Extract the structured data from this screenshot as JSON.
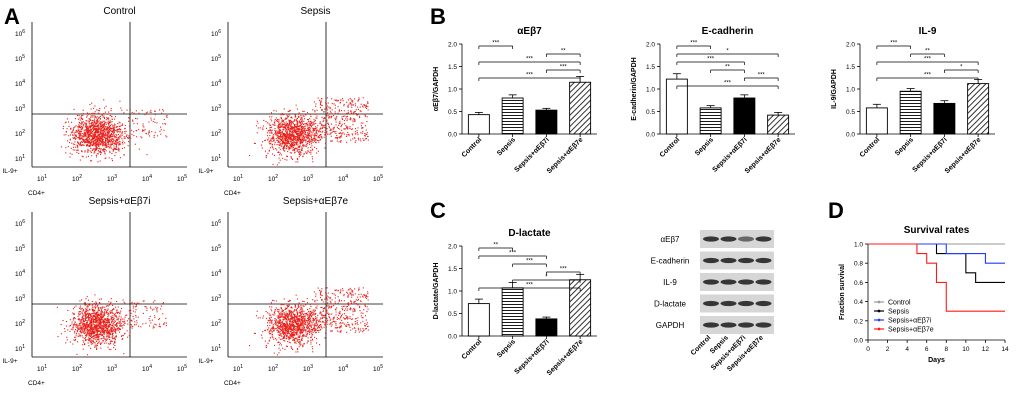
{
  "panel_letters": {
    "A": "A",
    "B": "B",
    "C": "C",
    "D": "D"
  },
  "flow": {
    "x_label": "CD4+",
    "y_label": "IL-9+",
    "log_ticks": [
      "10",
      "10",
      "10",
      "10",
      "10"
    ],
    "log_exps": [
      "1",
      "2",
      "3",
      "4",
      "5"
    ],
    "y_log_ticks": [
      "10",
      "10",
      "10",
      "10",
      "10",
      "10"
    ],
    "y_log_exps": [
      "1",
      "2",
      "3",
      "4",
      "5",
      "6"
    ],
    "plots": [
      {
        "title": "Control"
      },
      {
        "title": "Sepsis"
      },
      {
        "title": "Sepsis+αEβ7i"
      },
      {
        "title": "Sepsis+αEβ7e"
      }
    ],
    "dot_color": "#e8211b"
  },
  "groups": [
    "Control",
    "Sepsis",
    "Sepsis+αEβ7i",
    "Sepsis+αEβ7e"
  ],
  "chart_data": [
    {
      "type": "bar",
      "title": "αEβ7",
      "ylabel": "αEβ7/GAPDH",
      "categories": [
        "Control",
        "Sepsis",
        "Sepsis+αEβ7i",
        "Sepsis+αEβ7e"
      ],
      "values": [
        0.43,
        0.8,
        0.53,
        1.15
      ],
      "errors": [
        0.05,
        0.07,
        0.04,
        0.13
      ],
      "ylim": [
        0,
        2.0
      ],
      "yticks": [
        "0.0",
        "0.5",
        "1.0",
        "1.5",
        "2.0"
      ],
      "significance": [
        "***",
        "**",
        "***",
        "***",
        "***"
      ]
    },
    {
      "type": "bar",
      "title": "E-cadherin",
      "ylabel": "E-cadherin/GAPDH",
      "categories": [
        "Control",
        "Sepsis",
        "Sepsis+αEβ7i",
        "Sepsis+αEβ7e"
      ],
      "values": [
        1.22,
        0.58,
        0.8,
        0.42
      ],
      "errors": [
        0.12,
        0.05,
        0.07,
        0.06
      ],
      "ylim": [
        0,
        2.0
      ],
      "yticks": [
        "0.0",
        "0.5",
        "1.0",
        "1.5",
        "2.0"
      ],
      "significance": [
        "***",
        "*",
        "***",
        "**",
        "***",
        "***"
      ]
    },
    {
      "type": "bar",
      "title": "IL-9",
      "ylabel": "IL-9/GAPDH",
      "categories": [
        "Control",
        "Sepsis",
        "Sepsis+αEβ7i",
        "Sepsis+αEβ7e"
      ],
      "values": [
        0.58,
        0.95,
        0.68,
        1.12
      ],
      "errors": [
        0.08,
        0.06,
        0.06,
        0.09
      ],
      "ylim": [
        0,
        2.0
      ],
      "yticks": [
        "0.0",
        "0.5",
        "1.0",
        "1.5",
        "2.0"
      ],
      "significance": [
        "***",
        "**",
        "***",
        "*",
        "***"
      ]
    },
    {
      "type": "bar",
      "title": "D-lactate",
      "ylabel": "D-lactate/GAPDH",
      "categories": [
        "Control",
        "Sepsis",
        "Sepsis+αEβ7i",
        "Sepsis+αEβ7e"
      ],
      "values": [
        0.72,
        1.07,
        0.38,
        1.25
      ],
      "errors": [
        0.1,
        0.12,
        0.04,
        0.12
      ],
      "ylim": [
        0,
        2.0
      ],
      "yticks": [
        "0.0",
        "0.5",
        "1.0",
        "1.5",
        "2.0"
      ],
      "significance": [
        "**",
        "***",
        "***",
        "***",
        "*",
        "***"
      ]
    },
    {
      "type": "line",
      "title": "Survival rates",
      "xlabel": "Days",
      "ylabel": "Fraction survival",
      "xlim": [
        0,
        14
      ],
      "ylim": [
        0,
        1.0
      ],
      "xticks": [
        "0",
        "2",
        "4",
        "6",
        "8",
        "10",
        "12",
        "14"
      ],
      "yticks": [
        "0.0",
        "0.2",
        "0.4",
        "0.6",
        "0.8",
        "1.0"
      ],
      "series": [
        {
          "name": "Control",
          "color": "#999999",
          "steps": [
            [
              0,
              1.0
            ],
            [
              14,
              1.0
            ]
          ]
        },
        {
          "name": "Sepsis",
          "color": "#000000",
          "steps": [
            [
              0,
              1.0
            ],
            [
              7,
              0.9
            ],
            [
              10,
              0.7
            ],
            [
              11,
              0.6
            ],
            [
              14,
              0.6
            ]
          ]
        },
        {
          "name": "Sepsis+αEβ7i",
          "color": "#1f3fff",
          "steps": [
            [
              0,
              1.0
            ],
            [
              8,
              0.9
            ],
            [
              12,
              0.8
            ],
            [
              14,
              0.8
            ]
          ]
        },
        {
          "name": "Sepsis+αEβ7e",
          "color": "#ff1a1a",
          "steps": [
            [
              0,
              1.0
            ],
            [
              5,
              0.9
            ],
            [
              6,
              0.8
            ],
            [
              7,
              0.6
            ],
            [
              8,
              0.3
            ],
            [
              14,
              0.3
            ]
          ]
        }
      ]
    }
  ],
  "blot": {
    "labels": [
      "αEβ7",
      "E-cadherin",
      "IL-9",
      "D-lactate",
      "GAPDH"
    ],
    "lanes": [
      "Control",
      "Sepsis",
      "Sepsis+αEβ7i",
      "Sepsis+αEβ7e"
    ]
  }
}
